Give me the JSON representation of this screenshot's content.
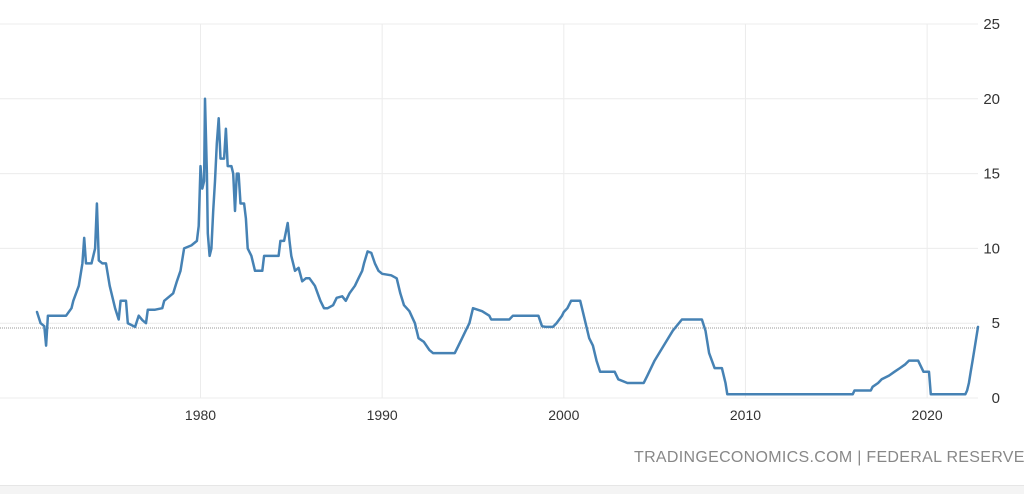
{
  "colors": {
    "line": "#4682b4",
    "grid": "#ececec",
    "text": "#333333",
    "source": "#888888",
    "last_marker": "#999999"
  },
  "source": "TRADINGECONOMICS.COM | FEDERAL RESERVE",
  "chart_data": {
    "type": "line",
    "title": "",
    "xlabel": "",
    "ylabel": "",
    "xlim": [
      1971.0,
      2022.8
    ],
    "ylim": [
      0,
      25
    ],
    "y_axis_position": "right",
    "grid": true,
    "y_ticks": [
      0,
      5,
      10,
      15,
      20,
      25
    ],
    "x_ticks": [
      1980,
      1990,
      2000,
      2010,
      2020
    ],
    "last_value": 4.75,
    "series": [
      {
        "values": [
          [
            1971.0,
            5.75
          ],
          [
            1971.2,
            5.0
          ],
          [
            1971.4,
            4.8
          ],
          [
            1971.5,
            3.5
          ],
          [
            1971.6,
            5.5
          ],
          [
            1972.0,
            5.5
          ],
          [
            1972.6,
            5.5
          ],
          [
            1972.9,
            6.0
          ],
          [
            1973.0,
            6.5
          ],
          [
            1973.3,
            7.5
          ],
          [
            1973.5,
            9.0
          ],
          [
            1973.6,
            10.7
          ],
          [
            1973.7,
            9.0
          ],
          [
            1974.0,
            9.0
          ],
          [
            1974.1,
            9.5
          ],
          [
            1974.2,
            10.0
          ],
          [
            1974.3,
            13.0
          ],
          [
            1974.4,
            9.2
          ],
          [
            1974.6,
            9.0
          ],
          [
            1974.8,
            9.0
          ],
          [
            1975.0,
            7.5
          ],
          [
            1975.3,
            6.0
          ],
          [
            1975.5,
            5.25
          ],
          [
            1975.6,
            6.5
          ],
          [
            1975.9,
            6.5
          ],
          [
            1976.0,
            5.0
          ],
          [
            1976.4,
            4.75
          ],
          [
            1976.6,
            5.5
          ],
          [
            1976.8,
            5.2
          ],
          [
            1977.0,
            5.0
          ],
          [
            1977.1,
            5.9
          ],
          [
            1977.5,
            5.9
          ],
          [
            1977.9,
            6.0
          ],
          [
            1978.0,
            6.5
          ],
          [
            1978.5,
            7.0
          ],
          [
            1978.7,
            7.8
          ],
          [
            1978.9,
            8.5
          ],
          [
            1979.1,
            10.0
          ],
          [
            1979.5,
            10.2
          ],
          [
            1979.8,
            10.5
          ],
          [
            1979.9,
            11.5
          ],
          [
            1980.0,
            15.5
          ],
          [
            1980.1,
            14.0
          ],
          [
            1980.2,
            14.5
          ],
          [
            1980.25,
            20.0
          ],
          [
            1980.35,
            15.0
          ],
          [
            1980.4,
            11.0
          ],
          [
            1980.5,
            9.5
          ],
          [
            1980.6,
            10.0
          ],
          [
            1980.7,
            12.5
          ],
          [
            1980.8,
            14.5
          ],
          [
            1980.9,
            17.0
          ],
          [
            1981.0,
            18.7
          ],
          [
            1981.1,
            16.0
          ],
          [
            1981.3,
            16.0
          ],
          [
            1981.4,
            18.0
          ],
          [
            1981.5,
            15.5
          ],
          [
            1981.7,
            15.5
          ],
          [
            1981.8,
            15.0
          ],
          [
            1981.9,
            12.5
          ],
          [
            1982.0,
            15.0
          ],
          [
            1982.1,
            15.0
          ],
          [
            1982.2,
            13.0
          ],
          [
            1982.4,
            13.0
          ],
          [
            1982.5,
            12.0
          ],
          [
            1982.6,
            10.0
          ],
          [
            1982.8,
            9.5
          ],
          [
            1983.0,
            8.5
          ],
          [
            1983.4,
            8.5
          ],
          [
            1983.5,
            9.5
          ],
          [
            1983.8,
            9.5
          ],
          [
            1984.0,
            9.5
          ],
          [
            1984.3,
            9.5
          ],
          [
            1984.4,
            10.5
          ],
          [
            1984.6,
            10.5
          ],
          [
            1984.8,
            11.7
          ],
          [
            1984.9,
            10.5
          ],
          [
            1985.0,
            9.5
          ],
          [
            1985.2,
            8.5
          ],
          [
            1985.4,
            8.7
          ],
          [
            1985.6,
            7.8
          ],
          [
            1985.8,
            8.0
          ],
          [
            1986.0,
            8.0
          ],
          [
            1986.3,
            7.5
          ],
          [
            1986.6,
            6.5
          ],
          [
            1986.8,
            6.0
          ],
          [
            1987.0,
            6.0
          ],
          [
            1987.3,
            6.2
          ],
          [
            1987.5,
            6.7
          ],
          [
            1987.8,
            6.8
          ],
          [
            1988.0,
            6.5
          ],
          [
            1988.2,
            7.0
          ],
          [
            1988.5,
            7.5
          ],
          [
            1988.7,
            8.0
          ],
          [
            1988.9,
            8.5
          ],
          [
            1989.0,
            9.0
          ],
          [
            1989.2,
            9.8
          ],
          [
            1989.4,
            9.7
          ],
          [
            1989.6,
            9.0
          ],
          [
            1989.8,
            8.5
          ],
          [
            1990.0,
            8.3
          ],
          [
            1990.5,
            8.2
          ],
          [
            1990.8,
            8.0
          ],
          [
            1991.0,
            7.0
          ],
          [
            1991.2,
            6.2
          ],
          [
            1991.5,
            5.8
          ],
          [
            1991.8,
            5.0
          ],
          [
            1992.0,
            4.0
          ],
          [
            1992.3,
            3.75
          ],
          [
            1992.6,
            3.2
          ],
          [
            1992.8,
            3.0
          ],
          [
            1993.0,
            3.0
          ],
          [
            1994.0,
            3.0
          ],
          [
            1994.2,
            3.5
          ],
          [
            1994.4,
            4.0
          ],
          [
            1994.6,
            4.5
          ],
          [
            1994.8,
            5.0
          ],
          [
            1995.0,
            6.0
          ],
          [
            1995.5,
            5.8
          ],
          [
            1995.9,
            5.5
          ],
          [
            1996.0,
            5.25
          ],
          [
            1997.0,
            5.25
          ],
          [
            1997.2,
            5.5
          ],
          [
            1998.0,
            5.5
          ],
          [
            1998.6,
            5.5
          ],
          [
            1998.8,
            4.8
          ],
          [
            1999.0,
            4.75
          ],
          [
            1999.4,
            4.75
          ],
          [
            1999.6,
            5.0
          ],
          [
            1999.9,
            5.5
          ],
          [
            2000.0,
            5.75
          ],
          [
            2000.2,
            6.0
          ],
          [
            2000.4,
            6.5
          ],
          [
            2000.9,
            6.5
          ],
          [
            2001.0,
            6.0
          ],
          [
            2001.2,
            5.0
          ],
          [
            2001.4,
            4.0
          ],
          [
            2001.6,
            3.5
          ],
          [
            2001.8,
            2.5
          ],
          [
            2002.0,
            1.75
          ],
          [
            2002.8,
            1.75
          ],
          [
            2003.0,
            1.25
          ],
          [
            2003.5,
            1.0
          ],
          [
            2004.4,
            1.0
          ],
          [
            2004.6,
            1.5
          ],
          [
            2005.0,
            2.5
          ],
          [
            2005.5,
            3.5
          ],
          [
            2006.0,
            4.5
          ],
          [
            2006.5,
            5.25
          ],
          [
            2007.6,
            5.25
          ],
          [
            2007.8,
            4.5
          ],
          [
            2008.0,
            3.0
          ],
          [
            2008.3,
            2.0
          ],
          [
            2008.7,
            2.0
          ],
          [
            2008.9,
            1.0
          ],
          [
            2009.0,
            0.25
          ],
          [
            2015.9,
            0.25
          ],
          [
            2016.0,
            0.5
          ],
          [
            2016.9,
            0.5
          ],
          [
            2017.0,
            0.75
          ],
          [
            2017.3,
            1.0
          ],
          [
            2017.5,
            1.25
          ],
          [
            2017.9,
            1.5
          ],
          [
            2018.2,
            1.75
          ],
          [
            2018.5,
            2.0
          ],
          [
            2018.8,
            2.25
          ],
          [
            2019.0,
            2.5
          ],
          [
            2019.5,
            2.5
          ],
          [
            2019.6,
            2.25
          ],
          [
            2019.8,
            1.75
          ],
          [
            2020.1,
            1.75
          ],
          [
            2020.2,
            0.25
          ],
          [
            2022.1,
            0.25
          ],
          [
            2022.2,
            0.5
          ],
          [
            2022.3,
            1.0
          ],
          [
            2022.4,
            1.75
          ],
          [
            2022.5,
            2.5
          ],
          [
            2022.6,
            3.25
          ],
          [
            2022.7,
            4.0
          ],
          [
            2022.8,
            4.75
          ]
        ]
      }
    ]
  }
}
